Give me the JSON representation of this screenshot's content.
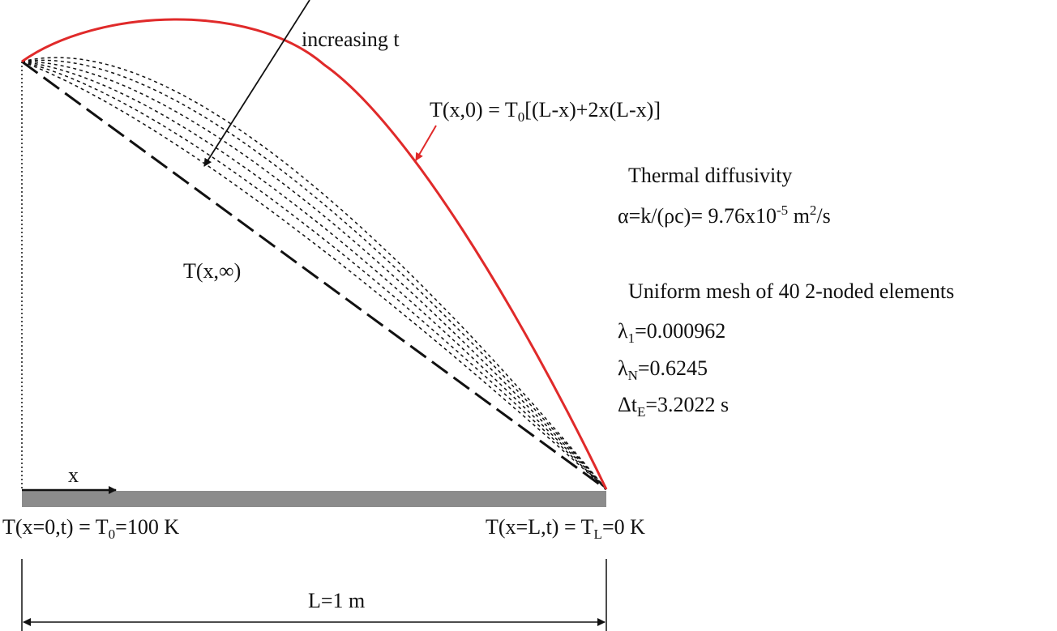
{
  "labels": {
    "increasing": "increasing t",
    "initial_pre": "T(x,0) = T",
    "initial_sub": "0",
    "initial_post": "[(L-x)+2x(L-x)]",
    "steady": "T(x,∞)",
    "x_axis": "x",
    "left_bc_pre": "T(x=0,t) = T",
    "left_bc_sub": "0",
    "left_bc_post": "=100 K",
    "right_bc_pre": "T(x=L,t) = T",
    "right_bc_sub": "L",
    "right_bc_post": "=0 K",
    "length": "L=1 m"
  },
  "info": {
    "diffusivity_title": "Thermal diffusivity",
    "diffusivity_pre": "α=k/(ρc)= 9.76x10",
    "diffusivity_exp": "-5",
    "diffusivity_mid": " m",
    "diffusivity_exp2": "2",
    "diffusivity_post": "/s",
    "mesh": "Uniform mesh of 40 2-noded elements",
    "lambda1_sym": "λ",
    "lambda1_sub": "1",
    "lambda1_val": "=0.000962",
    "lambdaN_sym": "λ",
    "lambdaN_sub": "N",
    "lambdaN_val": "=0.6245",
    "dt_sym": "Δt",
    "dt_sub": "E",
    "dt_val": "=3.2022 s"
  },
  "colors": {
    "initial_curve": "#e02a2a",
    "bar": "#8c8c8c",
    "lines": "#111111"
  }
}
